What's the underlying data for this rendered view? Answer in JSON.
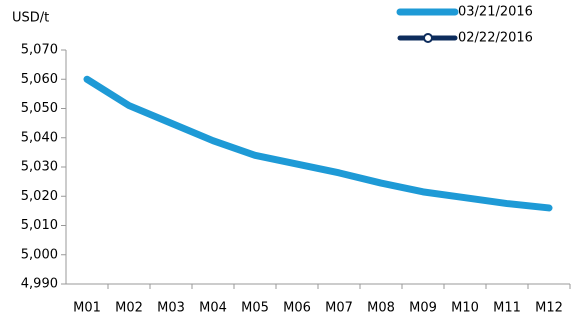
{
  "chart_data": {
    "type": "line",
    "y_axis_label": "USD/t",
    "categories": [
      "M01",
      "M02",
      "M03",
      "M04",
      "M05",
      "M06",
      "M07",
      "M08",
      "M09",
      "M10",
      "M11",
      "M12"
    ],
    "series": [
      {
        "name": "03/21/2016",
        "color": "#1e9ad6",
        "values": [
          5060,
          5051,
          5045,
          5039,
          5034,
          5031,
          5028,
          5024.5,
          5021.5,
          5019.5,
          5017.5,
          5016
        ]
      },
      {
        "name": "02/22/2016",
        "color": "#0d2c5c",
        "values": [
          null,
          null,
          null,
          null,
          null,
          null,
          null,
          null,
          null,
          null,
          null,
          null
        ]
      }
    ],
    "ylim": [
      4990,
      5070
    ],
    "yticks": [
      {
        "value": 4990,
        "label": "4,990"
      },
      {
        "value": 5000,
        "label": "5,000"
      },
      {
        "value": 5010,
        "label": "5,010"
      },
      {
        "value": 5020,
        "label": "5,020"
      },
      {
        "value": 5030,
        "label": "5,030"
      },
      {
        "value": 5040,
        "label": "5,040"
      },
      {
        "value": 5050,
        "label": "5,050"
      },
      {
        "value": 5060,
        "label": "5,060"
      },
      {
        "value": 5070,
        "label": "5,070"
      }
    ],
    "grid": false,
    "legend": "top-right"
  }
}
